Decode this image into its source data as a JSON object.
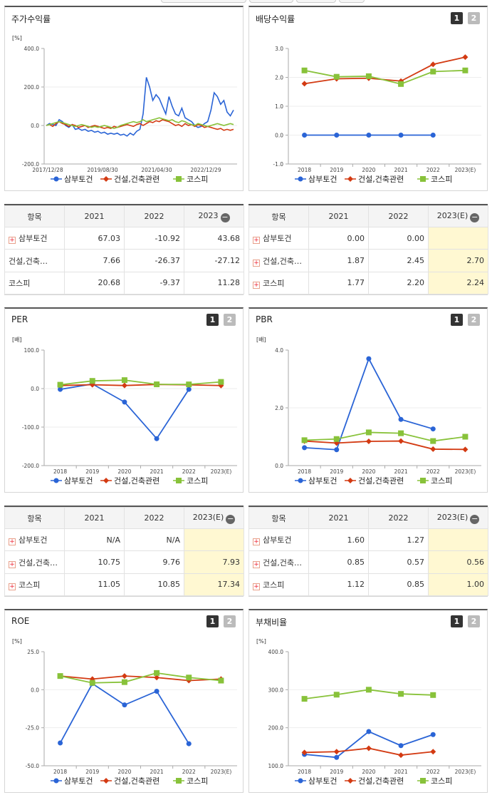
{
  "panels": [
    {
      "title": "주가수익률",
      "unit": "[%]",
      "type": "line",
      "yticks": [
        "400.0",
        "200.0",
        "0.0",
        "-200.0"
      ],
      "ymin": -200,
      "ymax": 400,
      "xlabels": [
        "2017/12/28",
        "2019/08/30",
        "2021/04/30",
        "2022/12/29"
      ],
      "legend": [
        "삼부토건",
        "건설,건축관련",
        "코스피"
      ],
      "colors": [
        "#2a64d6",
        "#d33a12",
        "#88c23a"
      ],
      "series": [
        [
          0,
          10,
          5,
          0,
          30,
          20,
          0,
          -10,
          5,
          -20,
          -15,
          -25,
          -20,
          -30,
          -25,
          -35,
          -30,
          -40,
          -35,
          -45,
          -40,
          -45,
          -40,
          -50,
          -45,
          -55,
          -40,
          -50,
          -30,
          -20,
          60,
          250,
          200,
          130,
          160,
          140,
          100,
          60,
          150,
          100,
          60,
          50,
          90,
          40,
          30,
          20,
          0,
          -10,
          -5,
          10,
          20,
          80,
          170,
          150,
          110,
          130,
          70,
          50,
          80
        ],
        [
          0,
          5,
          -5,
          10,
          20,
          10,
          5,
          -5,
          5,
          0,
          -10,
          -5,
          0,
          -10,
          -5,
          0,
          -5,
          -10,
          -15,
          -10,
          -15,
          -5,
          -10,
          -5,
          0,
          5,
          0,
          -5,
          5,
          10,
          0,
          10,
          20,
          15,
          25,
          20,
          30,
          25,
          20,
          10,
          0,
          5,
          -5,
          10,
          0,
          5,
          -5,
          5,
          0,
          -10,
          -5,
          -10,
          -15,
          -20,
          -15,
          -25,
          -20,
          -25,
          -20
        ],
        [
          0,
          5,
          10,
          15,
          20,
          15,
          10,
          5,
          0,
          -5,
          0,
          5,
          0,
          -5,
          -10,
          -5,
          -10,
          -5,
          0,
          -5,
          -10,
          -15,
          -10,
          0,
          5,
          10,
          15,
          20,
          15,
          20,
          30,
          20,
          25,
          30,
          35,
          40,
          35,
          30,
          25,
          30,
          20,
          15,
          25,
          20,
          10,
          5,
          0,
          10,
          5,
          0,
          -5,
          0,
          5,
          10,
          5,
          0,
          5,
          10,
          5
        ]
      ]
    },
    {
      "title": "배당수익률",
      "unit": "",
      "type": "point",
      "yticks": [
        "3.0",
        "2.0",
        "1.0",
        "0.0",
        "-1.0"
      ],
      "ymin": -1,
      "ymax": 3,
      "xlabels": [
        "2018",
        "2019",
        "2020",
        "2021",
        "2022",
        "2023(E)"
      ],
      "legend": [
        "삼부토건",
        "건설,건축관련",
        "코스피"
      ],
      "colors": [
        "#2a64d6",
        "#d33a12",
        "#88c23a"
      ],
      "series": [
        [
          0.0,
          0.0,
          0.0,
          0.0,
          0.0,
          null
        ],
        [
          1.78,
          1.95,
          1.97,
          1.87,
          2.45,
          2.7
        ],
        [
          2.24,
          2.02,
          2.04,
          1.77,
          2.2,
          2.24
        ]
      ]
    },
    {
      "title": "PER",
      "unit": "[배]",
      "type": "point",
      "yticks": [
        "100.0",
        "0.0",
        "-100.0",
        "-200.0"
      ],
      "ymin": -200,
      "ymax": 100,
      "xlabels": [
        "2018",
        "2019",
        "2020",
        "2021",
        "2022",
        "2023(E)"
      ],
      "legend": [
        "삼부토건",
        "건설,건축관련",
        "코스피"
      ],
      "colors": [
        "#2a64d6",
        "#d33a12",
        "#88c23a"
      ],
      "series": [
        [
          -2,
          12,
          -35,
          -130,
          -2,
          null
        ],
        [
          8,
          10,
          8,
          10.75,
          9.76,
          7.93
        ],
        [
          10,
          20,
          22,
          11.05,
          10.85,
          17.34
        ]
      ]
    },
    {
      "title": "PBR",
      "unit": "[배]",
      "type": "point",
      "yticks": [
        "4.0",
        "2.0",
        "0.0"
      ],
      "ymin": 0,
      "ymax": 4,
      "xlabels": [
        "2018",
        "2019",
        "2020",
        "2021",
        "2022",
        "2023(E)"
      ],
      "legend": [
        "삼부토건",
        "건설,건축관련",
        "코스피"
      ],
      "colors": [
        "#2a64d6",
        "#d33a12",
        "#88c23a"
      ],
      "series": [
        [
          0.62,
          0.55,
          3.7,
          1.6,
          1.27,
          null
        ],
        [
          0.85,
          0.78,
          0.84,
          0.85,
          0.57,
          0.56
        ],
        [
          0.88,
          0.92,
          1.15,
          1.12,
          0.85,
          1.0
        ]
      ]
    },
    {
      "title": "ROE",
      "unit": "[%]",
      "type": "point",
      "yticks": [
        "25.0",
        "0.0",
        "-25.0",
        "-50.0"
      ],
      "ymin": -50,
      "ymax": 25,
      "xlabels": [
        "2018",
        "2019",
        "2020",
        "2021",
        "2022",
        "2023(E)"
      ],
      "legend": [
        "삼부토건",
        "건설,건축관련",
        "코스피"
      ],
      "colors": [
        "#2a64d6",
        "#d33a12",
        "#88c23a"
      ],
      "series": [
        [
          -35,
          4,
          -10,
          -1,
          -35.5,
          null
        ],
        [
          9,
          7,
          9,
          8,
          6,
          7
        ],
        [
          9,
          4.5,
          5,
          11,
          8,
          6
        ]
      ]
    },
    {
      "title": "부채비율",
      "unit": "[%]",
      "type": "point",
      "yticks": [
        "400.0",
        "300.0",
        "200.0",
        "100.0"
      ],
      "ymin": 100,
      "ymax": 400,
      "xlabels": [
        "2018",
        "2019",
        "2020",
        "2021",
        "2022",
        "2023(E)"
      ],
      "legend": [
        "삼부토건",
        "건설,건축관련",
        "코스피"
      ],
      "colors": [
        "#2a64d6",
        "#d33a12",
        "#88c23a"
      ],
      "series": [
        [
          130,
          122,
          190,
          153,
          182,
          null
        ],
        [
          135,
          137,
          146,
          128,
          137,
          null
        ],
        [
          276,
          287,
          300,
          289,
          286,
          null
        ]
      ]
    }
  ],
  "tables": [
    {
      "header": [
        "항목",
        "2021",
        "2022",
        "2023"
      ],
      "rows": [
        {
          "name": "삼부토건",
          "vals": [
            "67.03",
            "-10.92",
            "43.68"
          ]
        },
        {
          "name": "건설,건축…",
          "vals": [
            "7.66",
            "-26.37",
            "-27.12"
          ]
        },
        {
          "name": "코스피",
          "vals": [
            "20.68",
            "-9.37",
            "11.28"
          ]
        }
      ]
    },
    {
      "header": [
        "항목",
        "2021",
        "2022",
        "2023(E)"
      ],
      "rows": [
        {
          "name": "삼부토건",
          "vals": [
            "0.00",
            "0.00",
            ""
          ]
        },
        {
          "name": "건설,건축…",
          "vals": [
            "1.87",
            "2.45",
            "2.70"
          ]
        },
        {
          "name": "코스피",
          "vals": [
            "1.77",
            "2.20",
            "2.24"
          ]
        }
      ]
    },
    {
      "header": [
        "항목",
        "2021",
        "2022",
        "2023(E)"
      ],
      "rows": [
        {
          "name": "삼부토건",
          "vals": [
            "N/A",
            "N/A",
            ""
          ]
        },
        {
          "name": "건설,건축…",
          "vals": [
            "10.75",
            "9.76",
            "7.93"
          ]
        },
        {
          "name": "코스피",
          "vals": [
            "11.05",
            "10.85",
            "17.34"
          ]
        }
      ]
    },
    {
      "header": [
        "항목",
        "2021",
        "2022",
        "2023(E)"
      ],
      "rows": [
        {
          "name": "삼부토건",
          "vals": [
            "1.60",
            "1.27",
            ""
          ]
        },
        {
          "name": "건설,건축…",
          "vals": [
            "0.85",
            "0.57",
            "0.56"
          ]
        },
        {
          "name": "코스피",
          "vals": [
            "1.12",
            "0.85",
            "1.00"
          ]
        }
      ]
    }
  ],
  "toggles": [
    "1",
    "2"
  ],
  "chart_data": [
    {
      "type": "line",
      "title": "주가수익률",
      "ylabel": "[%]",
      "ylim": [
        -200,
        400
      ],
      "x": [
        "2017/12/28",
        "2019/08/30",
        "2021/04/30",
        "2022/12/29"
      ],
      "series": [
        {
          "name": "삼부토건"
        },
        {
          "name": "건설,건축관련"
        },
        {
          "name": "코스피"
        }
      ]
    },
    {
      "type": "line",
      "title": "배당수익률",
      "ylim": [
        -1,
        3
      ],
      "categories": [
        "2018",
        "2019",
        "2020",
        "2021",
        "2022",
        "2023(E)"
      ],
      "series": [
        {
          "name": "삼부토건",
          "values": [
            0.0,
            0.0,
            0.0,
            0.0,
            0.0,
            null
          ]
        },
        {
          "name": "건설,건축관련",
          "values": [
            1.78,
            1.95,
            1.97,
            1.87,
            2.45,
            2.7
          ]
        },
        {
          "name": "코스피",
          "values": [
            2.24,
            2.02,
            2.04,
            1.77,
            2.2,
            2.24
          ]
        }
      ]
    },
    {
      "type": "line",
      "title": "PER",
      "ylabel": "[배]",
      "ylim": [
        -200,
        100
      ],
      "categories": [
        "2018",
        "2019",
        "2020",
        "2021",
        "2022",
        "2023(E)"
      ],
      "series": [
        {
          "name": "삼부토건",
          "values": [
            -2,
            12,
            -35,
            -130,
            -2,
            null
          ]
        },
        {
          "name": "건설,건축관련",
          "values": [
            8,
            10,
            8,
            10.75,
            9.76,
            7.93
          ]
        },
        {
          "name": "코스피",
          "values": [
            10,
            20,
            22,
            11.05,
            10.85,
            17.34
          ]
        }
      ]
    },
    {
      "type": "line",
      "title": "PBR",
      "ylabel": "[배]",
      "ylim": [
        0,
        4
      ],
      "categories": [
        "2018",
        "2019",
        "2020",
        "2021",
        "2022",
        "2023(E)"
      ],
      "series": [
        {
          "name": "삼부토건",
          "values": [
            0.62,
            0.55,
            3.7,
            1.6,
            1.27,
            null
          ]
        },
        {
          "name": "건설,건축관련",
          "values": [
            0.85,
            0.78,
            0.84,
            0.85,
            0.57,
            0.56
          ]
        },
        {
          "name": "코스피",
          "values": [
            0.88,
            0.92,
            1.15,
            1.12,
            0.85,
            1.0
          ]
        }
      ]
    },
    {
      "type": "line",
      "title": "ROE",
      "ylabel": "[%]",
      "ylim": [
        -50,
        25
      ],
      "categories": [
        "2018",
        "2019",
        "2020",
        "2021",
        "2022",
        "2023(E)"
      ],
      "series": [
        {
          "name": "삼부토건",
          "values": [
            -35,
            4,
            -10,
            -1,
            -35.5,
            null
          ]
        },
        {
          "name": "건설,건축관련",
          "values": [
            9,
            7,
            9,
            8,
            6,
            7
          ]
        },
        {
          "name": "코스피",
          "values": [
            9,
            4.5,
            5,
            11,
            8,
            6
          ]
        }
      ]
    },
    {
      "type": "line",
      "title": "부채비율",
      "ylabel": "[%]",
      "ylim": [
        100,
        400
      ],
      "categories": [
        "2018",
        "2019",
        "2020",
        "2021",
        "2022",
        "2023(E)"
      ],
      "series": [
        {
          "name": "삼부토건",
          "values": [
            130,
            122,
            190,
            153,
            182,
            null
          ]
        },
        {
          "name": "건설,건축관련",
          "values": [
            135,
            137,
            146,
            128,
            137,
            null
          ]
        },
        {
          "name": "코스피",
          "values": [
            276,
            287,
            300,
            289,
            286,
            null
          ]
        }
      ]
    }
  ]
}
